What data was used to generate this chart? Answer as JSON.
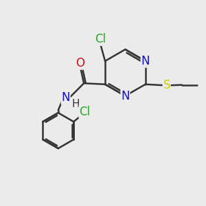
{
  "background_color": "#ebebeb",
  "atom_colors": {
    "N": "#1010cc",
    "O": "#cc1010",
    "S": "#cccc00",
    "Cl": "#22aa22",
    "H": "#333333"
  },
  "bond_color": "#333333",
  "bond_width": 1.8,
  "font_size": 12,
  "fig_size": [
    3.0,
    3.0
  ],
  "dpi": 100
}
